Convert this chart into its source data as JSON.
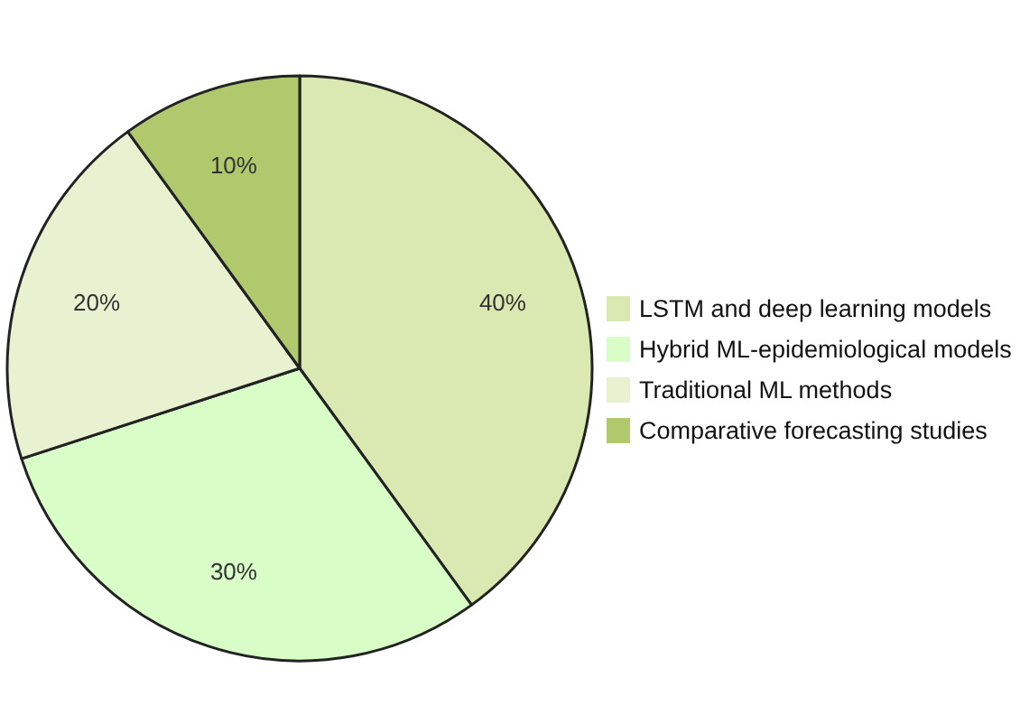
{
  "chart_data": {
    "type": "pie",
    "categories": [
      "LSTM and deep learning models",
      "Hybrid ML-epidemiological models",
      "Traditional ML methods",
      "Comparative forecasting studies"
    ],
    "values": [
      40,
      30,
      20,
      10
    ],
    "value_labels": [
      "40%",
      "30%",
      "20%",
      "10%"
    ],
    "colors": [
      "#d9e9b1",
      "#d9fdc6",
      "#e8f2d1",
      "#afc96c"
    ],
    "legend": "right"
  }
}
